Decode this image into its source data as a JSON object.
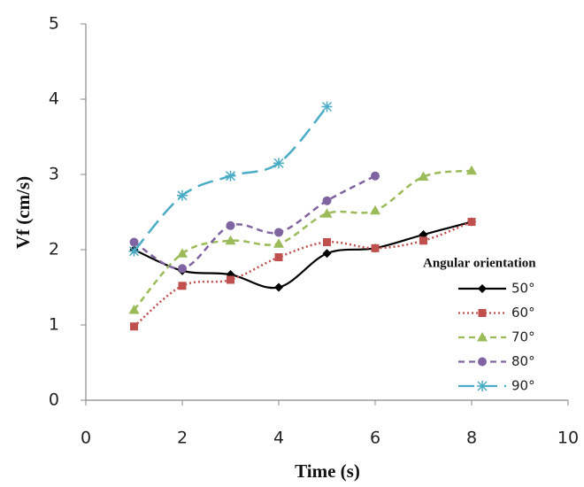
{
  "chart_data": {
    "type": "line",
    "xlabel": "Time (s)",
    "ylabel": "Vf (cm/s)",
    "legend_title": "Angular orientation",
    "legend": "lower right",
    "x": [
      1,
      2,
      3,
      4,
      5,
      6,
      7,
      8
    ],
    "series": [
      {
        "name": "50°",
        "color": "#000000",
        "marker": "diamond",
        "dash": "solid",
        "values": [
          2.0,
          1.72,
          1.67,
          1.5,
          1.95,
          2.02,
          2.2,
          2.37
        ]
      },
      {
        "name": "60°",
        "color": "#c0504d",
        "marker": "square",
        "dash": "dotted",
        "values": [
          0.98,
          1.52,
          1.6,
          1.9,
          2.1,
          2.02,
          2.12,
          2.37
        ]
      },
      {
        "name": "70°",
        "color": "#9bbb59",
        "marker": "triangle",
        "dash": "dashed",
        "values": [
          1.2,
          1.95,
          2.12,
          2.08,
          2.48,
          2.52,
          2.97,
          3.05
        ]
      },
      {
        "name": "80°",
        "color": "#8064a2",
        "marker": "circle",
        "dash": "dashed",
        "values": [
          2.1,
          1.75,
          2.32,
          2.23,
          2.65,
          2.98,
          null,
          null
        ]
      },
      {
        "name": "90°",
        "color": "#4bacc6",
        "marker": "star",
        "dash": "longdash",
        "values": [
          1.98,
          2.72,
          2.98,
          3.15,
          3.9,
          null,
          null,
          null
        ]
      }
    ],
    "xlim": [
      0,
      10
    ],
    "xticks": [
      0,
      2,
      4,
      6,
      8,
      10
    ],
    "ylim": [
      0,
      5
    ],
    "yticks": [
      0,
      1,
      2,
      3,
      4,
      5
    ]
  }
}
